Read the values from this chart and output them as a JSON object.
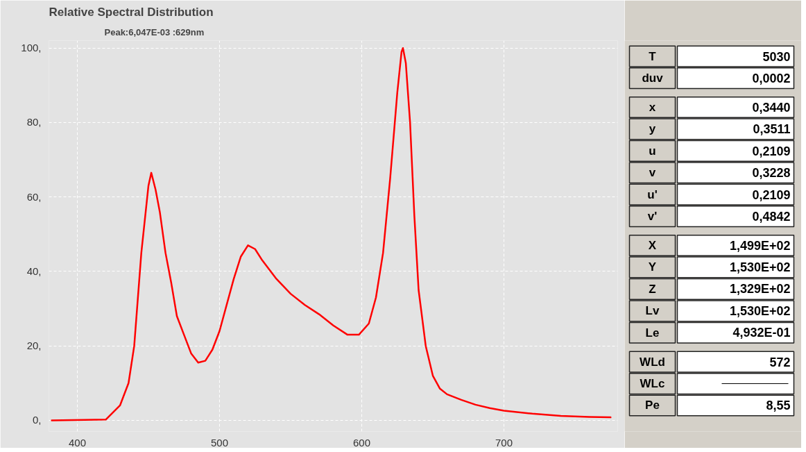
{
  "chart_data": [
    {
      "type": "line",
      "title": "Relative Spectral Distribution",
      "subtitle": "Peak:6,047E-03 :629nm",
      "xlim": [
        380,
        780
      ],
      "ylim": [
        -3,
        102
      ],
      "xticks": [
        400,
        500,
        600,
        700
      ],
      "yticks": [
        {
          "value": 0,
          "label": "0,"
        },
        {
          "value": 20,
          "label": "20,"
        },
        {
          "value": 40,
          "label": "40,"
        },
        {
          "value": 60,
          "label": "60,"
        },
        {
          "value": 80,
          "label": "80,"
        },
        {
          "value": 100,
          "label": "100,"
        }
      ],
      "grid": true,
      "line_style": "solid",
      "x": [
        382,
        420,
        430,
        436,
        440,
        445,
        450,
        452,
        455,
        458,
        462,
        466,
        470,
        475,
        480,
        485,
        490,
        495,
        500,
        505,
        510,
        515,
        520,
        525,
        530,
        540,
        550,
        560,
        570,
        580,
        590,
        598,
        605,
        610,
        615,
        620,
        625,
        628,
        629,
        631,
        634,
        637,
        640,
        645,
        650,
        655,
        660,
        670,
        680,
        690,
        700,
        720,
        740,
        760,
        775
      ],
      "series": [
        {
          "color": "#ff0000",
          "values": [
            0,
            0.2,
            4,
            10,
            20,
            45,
            63,
            66.5,
            62,
            56,
            45,
            37,
            28,
            23,
            18,
            15.5,
            16,
            19,
            24,
            31,
            38,
            44,
            47,
            46,
            43,
            38,
            34,
            31,
            28.5,
            25.5,
            23,
            23,
            26,
            33,
            45,
            65,
            88,
            99,
            100,
            96,
            80,
            55,
            35,
            20,
            12,
            8.5,
            7,
            5.5,
            4.2,
            3.3,
            2.6,
            1.8,
            1.2,
            0.9,
            0.8
          ]
        }
      ]
    },
    {
      "type": "other",
      "categories": [
        "T",
        "duv",
        null,
        "x",
        "y",
        "u",
        "v",
        "u'",
        "v'",
        null,
        "X",
        "Y",
        "Z",
        "Lv",
        "Le",
        null,
        "WLd",
        "WLc",
        "Pe"
      ],
      "value_labels": [
        "5030",
        "0,0002",
        null,
        "0,3440",
        "0,3511",
        "0,2109",
        "0,3228",
        "0,2109",
        "0,4842",
        null,
        "1,499E+02",
        "1,530E+02",
        "1,329E+02",
        "1,530E+02",
        "4,932E-01",
        null,
        "572",
        null,
        "8,55"
      ]
    }
  ]
}
